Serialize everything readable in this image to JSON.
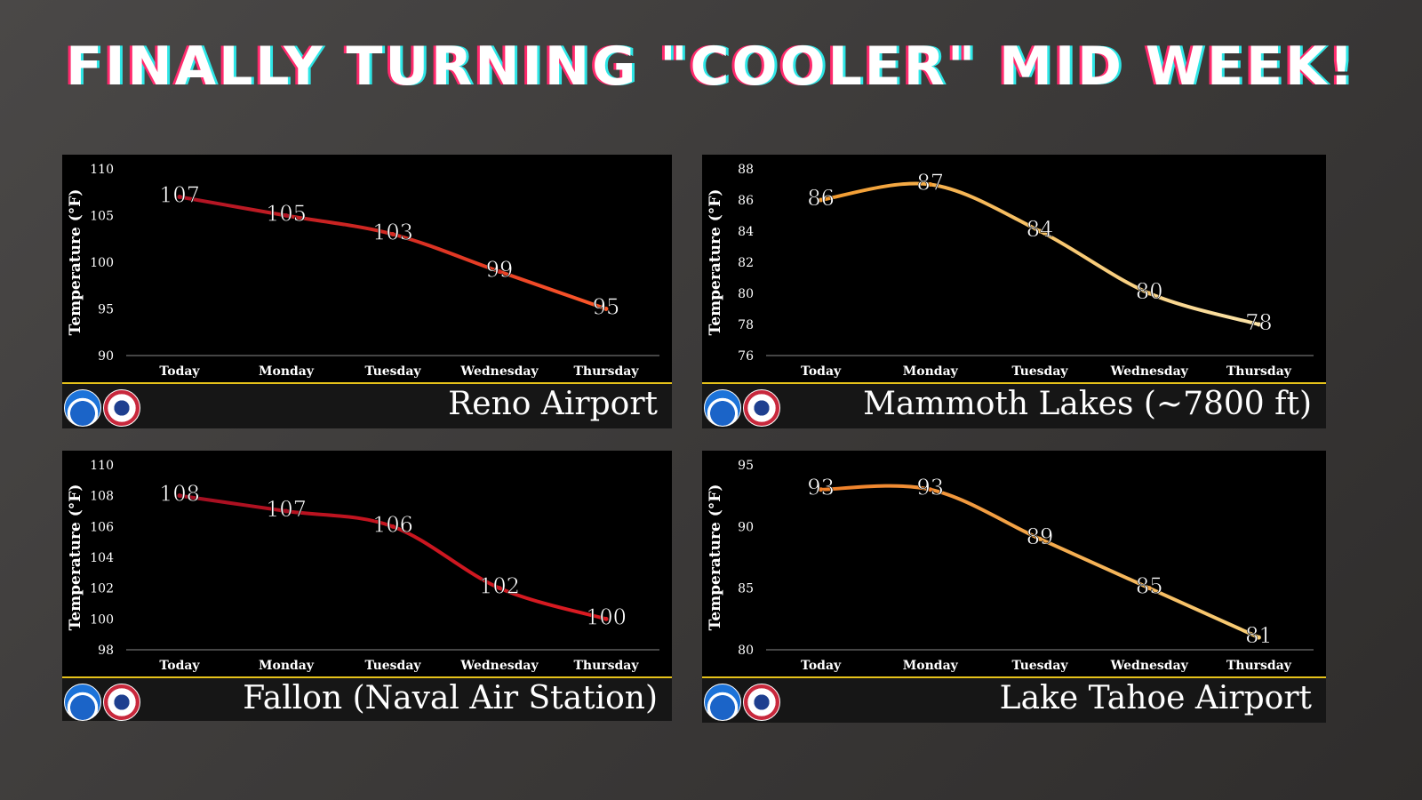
{
  "headline": "FINALLY TURNING \"COOLER\" MID WEEK!",
  "logos": [
    "noaa-logo",
    "nws-logo"
  ],
  "chart_data": [
    {
      "type": "line",
      "station": "Reno Airport",
      "ylabel": "Temperature (°F)",
      "categories": [
        "Today",
        "Monday",
        "Tuesday",
        "Wednesday",
        "Thursday"
      ],
      "values": [
        107,
        105,
        103,
        99,
        95
      ],
      "data_labels": [
        "107",
        "105",
        "103",
        "99",
        "95"
      ],
      "ylim": [
        90,
        110
      ],
      "yticks": [
        90,
        95,
        100,
        105,
        110
      ],
      "ytick_labels": [
        "90",
        "95",
        "100",
        "105",
        "110"
      ],
      "colors": [
        "#b01224",
        "#d42a22",
        "#ff5a2a"
      ]
    },
    {
      "type": "line",
      "station": "Mammoth Lakes (~7800 ft)",
      "ylabel": "Temperature (°F)",
      "categories": [
        "Today",
        "Monday",
        "Tuesday",
        "Wednesday",
        "Thursday"
      ],
      "values": [
        86,
        87,
        84,
        80,
        78
      ],
      "data_labels": [
        "86",
        "87",
        "84",
        "80",
        "78"
      ],
      "ylim": [
        76,
        88
      ],
      "yticks": [
        76,
        78,
        80,
        82,
        84,
        86,
        88
      ],
      "ytick_labels": [
        "76",
        "78",
        "80",
        "82",
        "84",
        "86",
        "88"
      ],
      "colors": [
        "#f29a2e",
        "#f7c46a",
        "#fbe3a8"
      ]
    },
    {
      "type": "line",
      "station": "Fallon (Naval Air Station)",
      "ylabel": "Temperature (°F)",
      "categories": [
        "Today",
        "Monday",
        "Tuesday",
        "Wednesday",
        "Thursday"
      ],
      "values": [
        108,
        107,
        106,
        102,
        100
      ],
      "data_labels": [
        "108",
        "107",
        "106",
        "102",
        "100"
      ],
      "ylim": [
        98,
        110
      ],
      "yticks": [
        98,
        100,
        102,
        104,
        106,
        108,
        110
      ],
      "ytick_labels": [
        "98",
        "100",
        "102",
        "104",
        "106",
        "108",
        "110"
      ],
      "colors": [
        "#a30f22",
        "#c8151f",
        "#dd1c22"
      ]
    },
    {
      "type": "line",
      "station": "Lake Tahoe Airport",
      "ylabel": "Temperature (°F)",
      "categories": [
        "Today",
        "Monday",
        "Tuesday",
        "Wednesday",
        "Thursday"
      ],
      "values": [
        93,
        93,
        89,
        85,
        81
      ],
      "data_labels": [
        "93",
        "93",
        "89",
        "85",
        "81"
      ],
      "ylim": [
        80,
        95
      ],
      "yticks": [
        80,
        85,
        90,
        95
      ],
      "ytick_labels": [
        "80",
        "85",
        "90",
        "95"
      ],
      "colors": [
        "#ef7e28",
        "#f4a84a",
        "#f8cf78"
      ]
    }
  ]
}
